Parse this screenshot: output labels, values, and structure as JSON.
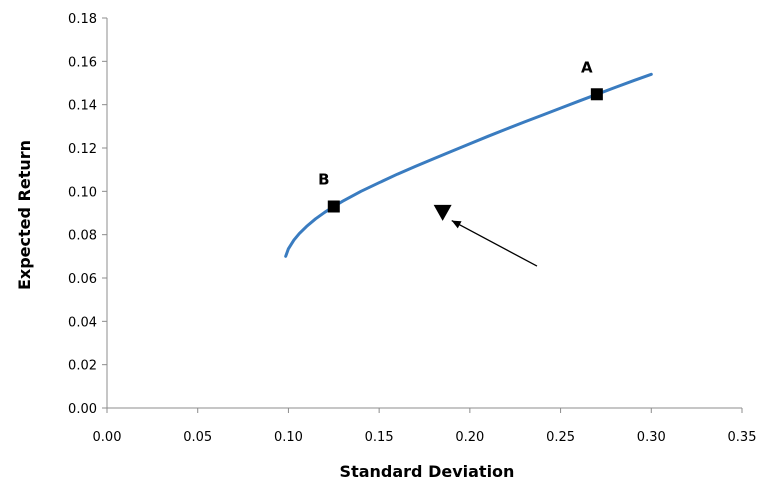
{
  "chart_data": {
    "type": "line",
    "xlabel": "Standard Deviation",
    "ylabel": "Expected Return",
    "xlim": [
      0,
      0.35
    ],
    "ylim": [
      0,
      0.18
    ],
    "xticks": [
      "0.00",
      "0.05",
      "0.10",
      "0.15",
      "0.20",
      "0.25",
      "0.30",
      "0.35"
    ],
    "yticks": [
      "0.00",
      "0.02",
      "0.04",
      "0.06",
      "0.08",
      "0.10",
      "0.12",
      "0.14",
      "0.16",
      "0.18"
    ],
    "grid": false,
    "legend": "none",
    "series": [
      {
        "color": "#3a7cc0",
        "x": [
          0.0985,
          0.1,
          0.103,
          0.106,
          0.11,
          0.115,
          0.12,
          0.125,
          0.13,
          0.14,
          0.15,
          0.16,
          0.17,
          0.18,
          0.19,
          0.2,
          0.21,
          0.22,
          0.23,
          0.24,
          0.25,
          0.26,
          0.27,
          0.28,
          0.29,
          0.3
        ],
        "y": [
          0.07,
          0.0735,
          0.0775,
          0.0805,
          0.0838,
          0.0873,
          0.0903,
          0.093,
          0.0955,
          0.1,
          0.104,
          0.1079,
          0.1115,
          0.115,
          0.1185,
          0.122,
          0.1254,
          0.1287,
          0.132,
          0.1352,
          0.1384,
          0.1416,
          0.1448,
          0.1479,
          0.151,
          0.154
        ]
      }
    ],
    "points": [
      {
        "label": "A",
        "x": 0.27,
        "y": 0.1448,
        "marker": "square"
      },
      {
        "label": "B",
        "x": 0.125,
        "y": 0.093,
        "marker": "square"
      }
    ],
    "annotation": {
      "marker": "triangle-down",
      "x": 0.185,
      "y": 0.0905,
      "arrow_from": [
        0.237,
        0.0655
      ],
      "arrow_to": [
        0.19,
        0.0865
      ]
    }
  }
}
